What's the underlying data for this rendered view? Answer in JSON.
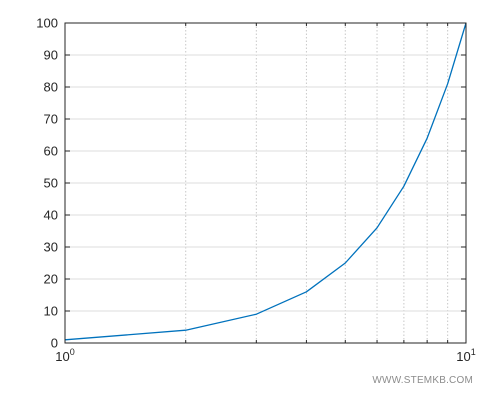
{
  "chart_data": {
    "type": "line",
    "title": "",
    "xlabel": "",
    "ylabel": "",
    "x_scale": "log",
    "xlim": [
      1,
      10
    ],
    "ylim": [
      0,
      100
    ],
    "grid": true,
    "x_tick_labels": [
      {
        "base": "10",
        "exp": "0"
      },
      {
        "base": "10",
        "exp": "1"
      }
    ],
    "y_ticks": [
      0,
      10,
      20,
      30,
      40,
      50,
      60,
      70,
      80,
      90,
      100
    ],
    "series": [
      {
        "color": "#0072bd",
        "x": [
          1,
          2,
          3,
          4,
          5,
          6,
          7,
          8,
          9,
          10
        ],
        "y": [
          1,
          4,
          9,
          16,
          25,
          36,
          49,
          64,
          81,
          100
        ]
      }
    ]
  },
  "watermark": "WWW.STEMKB.COM"
}
